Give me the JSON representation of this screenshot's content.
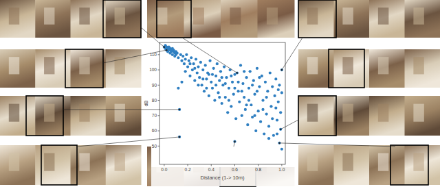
{
  "chart_data": {
    "type": "scatter",
    "x_label": "Distance (1-> 10m)",
    "y_label": "dB",
    "color": "#2f7fc1",
    "marker": "circle",
    "grid": false,
    "xlim": [
      -0.04,
      1.03
    ],
    "ylim": [
      38,
      118
    ],
    "xticks": [
      {
        "value": 0,
        "label": "0.0"
      },
      0.2,
      0.4,
      0.6,
      0.8,
      {
        "value": 1,
        "label": "1.0"
      }
    ],
    "yticks": [
      50,
      60,
      70,
      80,
      90,
      100,
      110
    ],
    "x": [
      0,
      0.01,
      0.01,
      0.02,
      0.02,
      0.03,
      0.03,
      0.04,
      0.04,
      0.05,
      0.05,
      0.06,
      0.06,
      0.07,
      0.07,
      0.08,
      0.08,
      0.09,
      0.09,
      0.1,
      0.1,
      0.11,
      0.12,
      0.12,
      0.13,
      0.13,
      0.14,
      0.15,
      0.15,
      0.16,
      0.17,
      0.18,
      0.18,
      0.19,
      0.2,
      0.21,
      0.22,
      0.23,
      0.24,
      0.25,
      0.26,
      0.27,
      0.28,
      0.29,
      0.3,
      0.31,
      0.32,
      0.33,
      0.34,
      0.35,
      0.36,
      0.37,
      0.38,
      0.39,
      0.4,
      0.41,
      0.42,
      0.43,
      0.44,
      0.45,
      0.46,
      0.47,
      0.48,
      0.49,
      0.5,
      0.51,
      0.52,
      0.53,
      0.54,
      0.55,
      0.56,
      0.57,
      0.58,
      0.59,
      0.6,
      0.6,
      0.61,
      0.62,
      0.63,
      0.64,
      0.65,
      0.66,
      0.67,
      0.68,
      0.69,
      0.7,
      0.71,
      0.72,
      0.73,
      0.74,
      0.75,
      0.76,
      0.77,
      0.78,
      0.79,
      0.8,
      0.81,
      0.82,
      0.83,
      0.84,
      0.85,
      0.86,
      0.87,
      0.88,
      0.89,
      0.9,
      0.91,
      0.92,
      0.93,
      0.94,
      0.95,
      0.96,
      0.97,
      0.98,
      0.98,
      0.99,
      0.99,
      1,
      1,
      1,
      0.22,
      0.26,
      0.33,
      0.36,
      0.41,
      0.44,
      0.47,
      0.52,
      0.55,
      0.57,
      0.63,
      0.66,
      0.68,
      0.72,
      0.75,
      0.77,
      0.81,
      0.84,
      0.87,
      0.92,
      0.95,
      0.97,
      0.96,
      0.89,
      0.79,
      0.7,
      0.6,
      0.49,
      0.38,
      0.29
    ],
    "values": [
      115,
      114,
      116,
      113,
      115,
      114,
      112,
      115,
      113,
      114,
      111,
      113,
      112,
      114,
      110,
      112,
      113,
      111,
      109,
      112,
      110,
      111,
      108,
      88,
      74,
      56,
      110,
      106,
      92,
      109,
      104,
      107,
      99,
      110,
      102,
      106,
      96,
      108,
      100,
      104,
      93,
      107,
      98,
      102,
      95,
      105,
      90,
      100,
      86,
      103,
      94,
      98,
      83,
      106,
      92,
      88,
      101,
      80,
      96,
      104,
      85,
      93,
      99,
      78,
      90,
      102,
      82,
      95,
      72,
      88,
      100,
      76,
      92,
      84,
      53,
      97,
      68,
      98,
      86,
      79,
      103,
      70,
      91,
      82,
      74,
      95,
      64,
      88,
      99,
      77,
      69,
      93,
      84,
      60,
      101,
      73,
      89,
      66,
      96,
      80,
      58,
      92,
      71,
      86,
      63,
      98,
      76,
      89,
      57,
      83,
      94,
      67,
      79,
      52,
      90,
      61,
      72,
      100,
      48,
      85,
      104,
      101,
      94,
      88,
      97,
      90,
      82,
      91,
      80,
      96,
      92,
      86,
      99,
      80,
      90,
      70,
      95,
      74,
      82,
      68,
      75,
      87,
      58,
      55,
      86,
      77,
      88,
      95,
      97,
      90
    ]
  }
}
